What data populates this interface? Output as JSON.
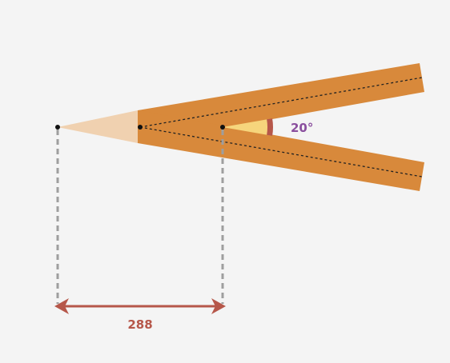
{
  "diagram": {
    "angle_label": "20°",
    "distance_label": "288",
    "colors": {
      "background": "#f4f4f4",
      "arm_fill": "#d8893b",
      "arm_fill_faded": "#f0d1b0",
      "angle_fill": "#f6d57c",
      "angle_arc": "#b6574a",
      "angle_text": "#8a4f9e",
      "dimension_arrow": "#b6574a",
      "dimension_text": "#b6574a",
      "guide_line": "#9e9e9e",
      "center_line": "#222222",
      "point": "#111111"
    }
  }
}
